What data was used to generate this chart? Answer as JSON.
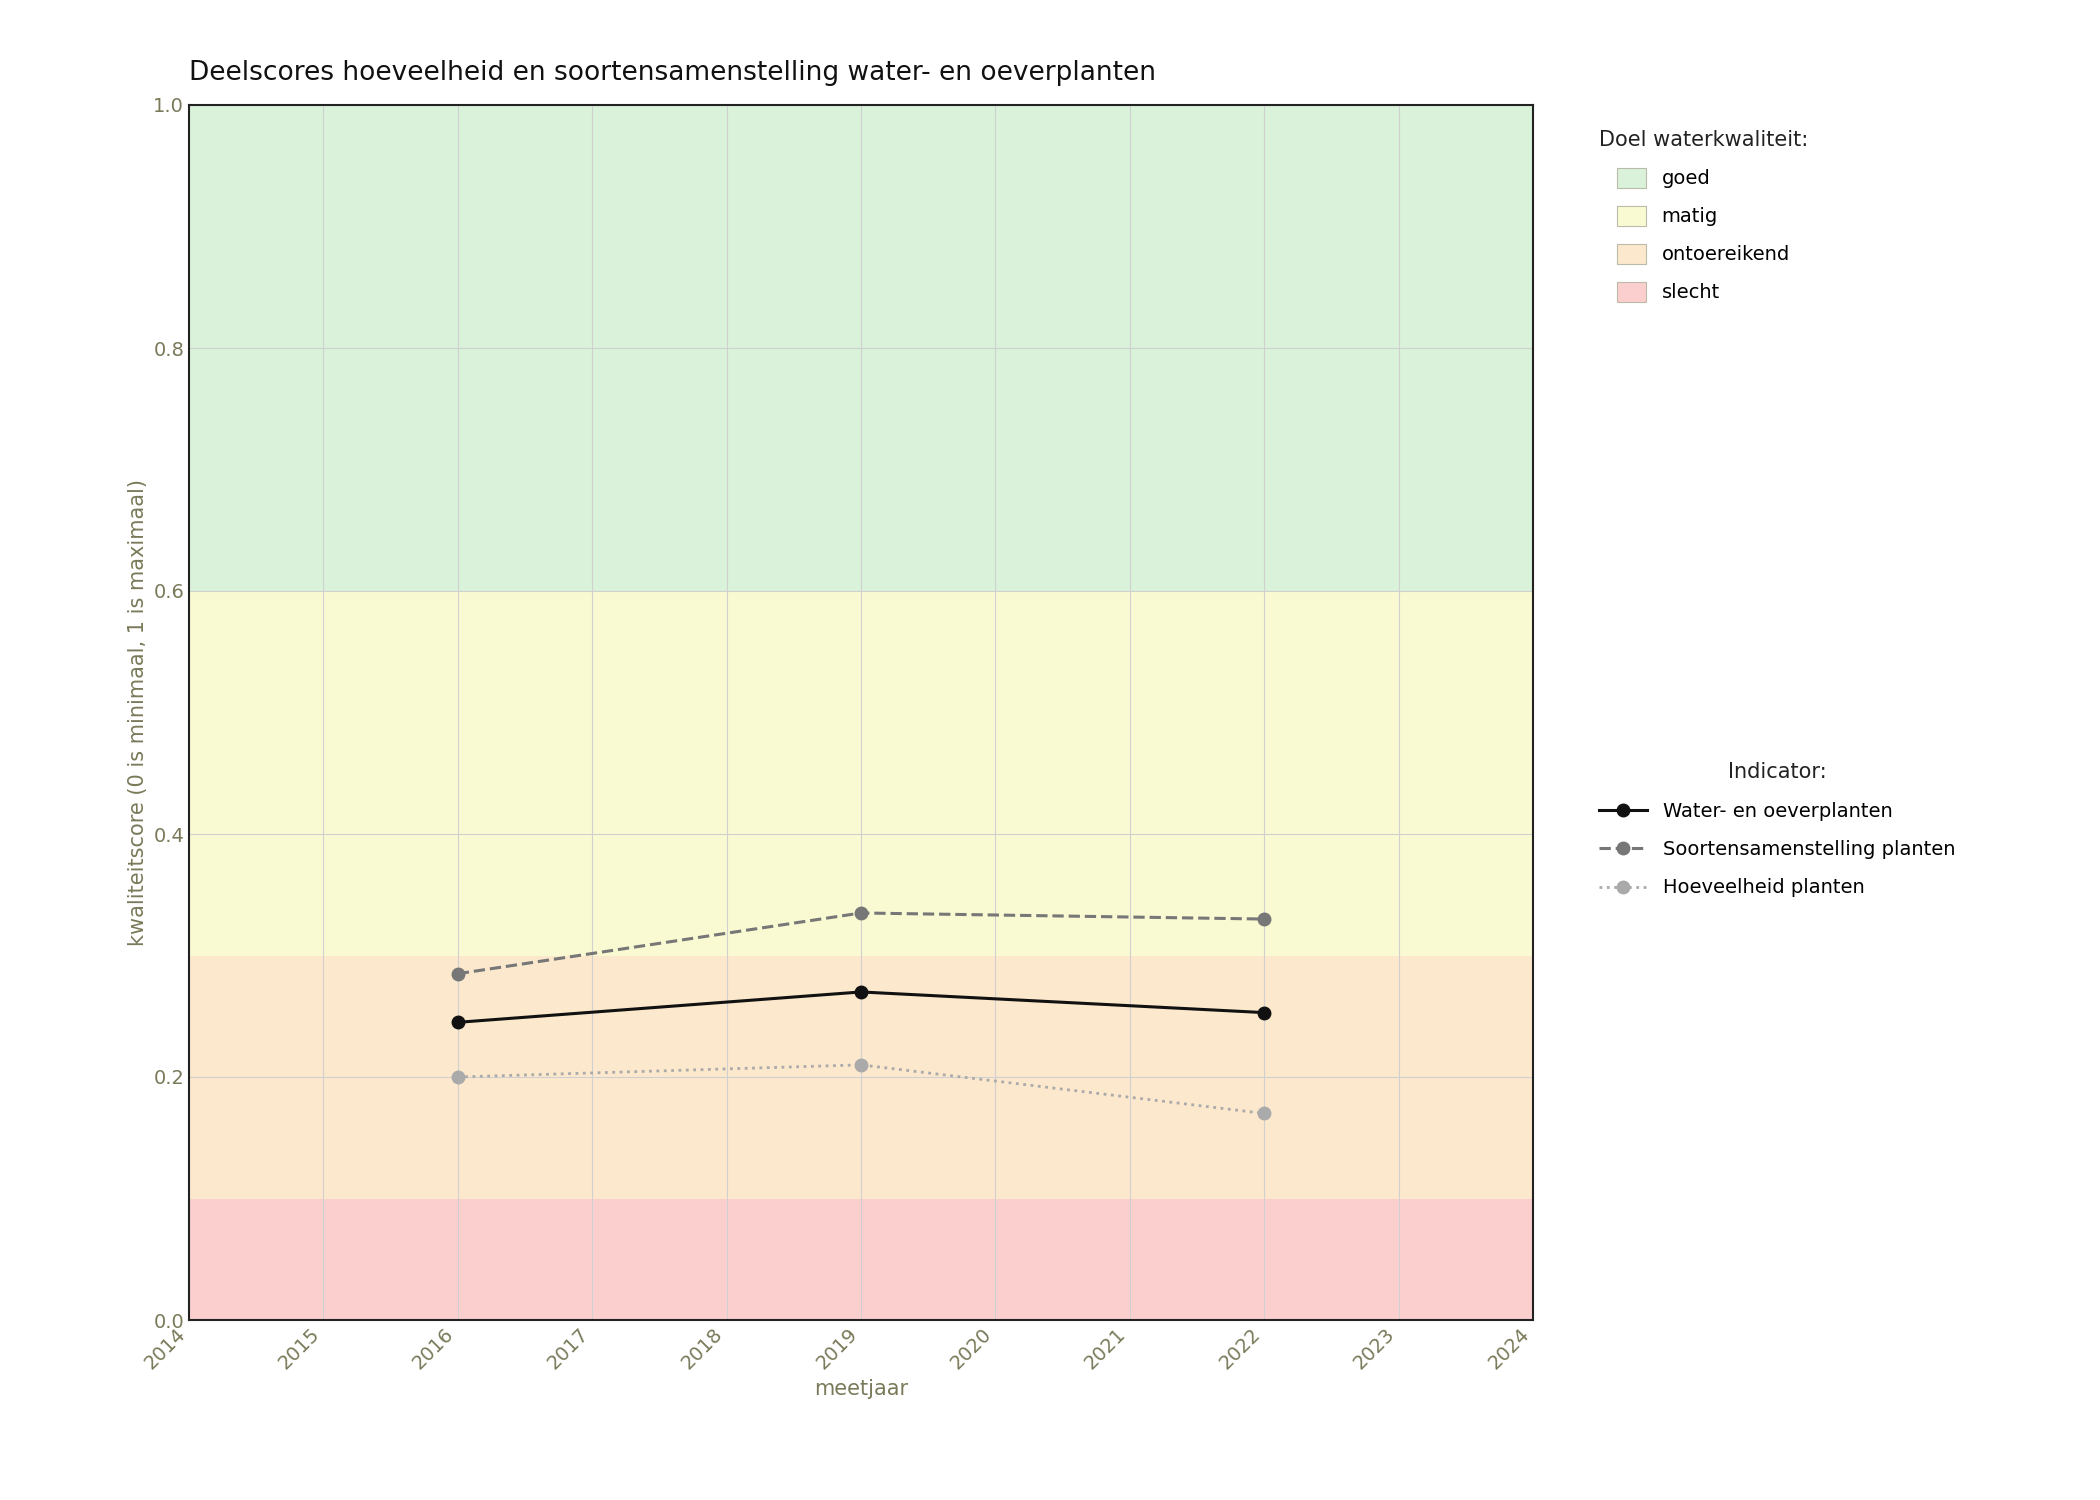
{
  "title": "Deelscores hoeveelheid en soortensamenstelling water- en oeverplanten",
  "xlabel": "meetjaar",
  "ylabel": "kwaliteitscore (0 is minimaal, 1 is maximaal)",
  "xlim": [
    2014,
    2024
  ],
  "ylim": [
    0.0,
    1.0
  ],
  "xticks": [
    2014,
    2015,
    2016,
    2017,
    2018,
    2019,
    2020,
    2021,
    2022,
    2023,
    2024
  ],
  "yticks": [
    0.0,
    0.2,
    0.4,
    0.6,
    0.8,
    1.0
  ],
  "background_color": "#ffffff",
  "bg_zones": [
    {
      "ymin": 0.0,
      "ymax": 0.1,
      "color": "#fccfcf",
      "label": "slecht"
    },
    {
      "ymin": 0.1,
      "ymax": 0.3,
      "color": "#fce8cc",
      "label": "ontoereikend"
    },
    {
      "ymin": 0.3,
      "ymax": 0.6,
      "color": "#fafad2",
      "label": "matig"
    },
    {
      "ymin": 0.6,
      "ymax": 1.0,
      "color": "#d9f2d9",
      "label": "goed"
    }
  ],
  "series": [
    {
      "name": "Water- en oeverplanten",
      "x": [
        2016,
        2019,
        2022
      ],
      "y": [
        0.245,
        0.27,
        0.253
      ],
      "color": "#111111",
      "linestyle": "solid",
      "linewidth": 2.2,
      "markersize": 9,
      "marker": "o",
      "zorder": 5
    },
    {
      "name": "Soortensamenstelling planten",
      "x": [
        2016,
        2019,
        2022
      ],
      "y": [
        0.285,
        0.335,
        0.33
      ],
      "color": "#777777",
      "linestyle": "dashed",
      "linewidth": 2.2,
      "markersize": 9,
      "marker": "o",
      "zorder": 4
    },
    {
      "name": "Hoeveelheid planten",
      "x": [
        2016,
        2019,
        2022
      ],
      "y": [
        0.2,
        0.21,
        0.17
      ],
      "color": "#aaaaaa",
      "linestyle": "dotted",
      "linewidth": 2.0,
      "markersize": 9,
      "marker": "o",
      "zorder": 3
    }
  ],
  "legend_title_quality": "Doel waterkwaliteit:",
  "legend_title_indicator": "Indicator:",
  "grid_color": "#d0d0d0",
  "grid_linewidth": 0.8,
  "axis_text_color": "#7a7a5a",
  "spine_color": "#222222",
  "title_fontsize": 19,
  "label_fontsize": 15,
  "tick_fontsize": 14,
  "legend_fontsize": 14,
  "legend_title_fontsize": 15
}
